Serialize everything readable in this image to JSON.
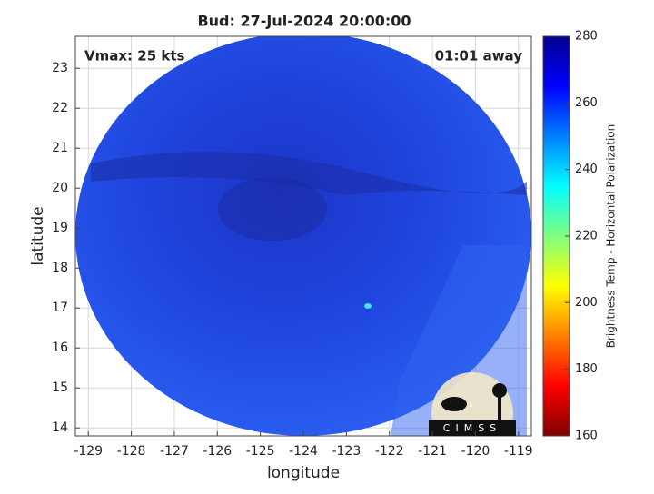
{
  "chart_data": {
    "type": "map",
    "title": "Bud: 27-Jul-2024 20:00:00",
    "annotations": [
      "Vmax: 25 kts",
      "01:01 away"
    ],
    "xlabel": "longitude",
    "ylabel": "latitude",
    "xlim": [
      -129.3,
      -118.7
    ],
    "ylim": [
      13.8,
      23.8
    ],
    "xticks": [
      -129,
      -128,
      -127,
      -126,
      -125,
      -124,
      -123,
      -122,
      -121,
      -120,
      -119
    ],
    "yticks": [
      14,
      15,
      16,
      17,
      18,
      19,
      20,
      21,
      22,
      23
    ],
    "grid": true,
    "colorbar": {
      "label": "Brightness Temp - Horizontal Polarization",
      "clim": [
        160,
        280
      ],
      "ticks": [
        160,
        180,
        200,
        220,
        240,
        260,
        280
      ]
    },
    "logo_text": "CIMSS"
  }
}
